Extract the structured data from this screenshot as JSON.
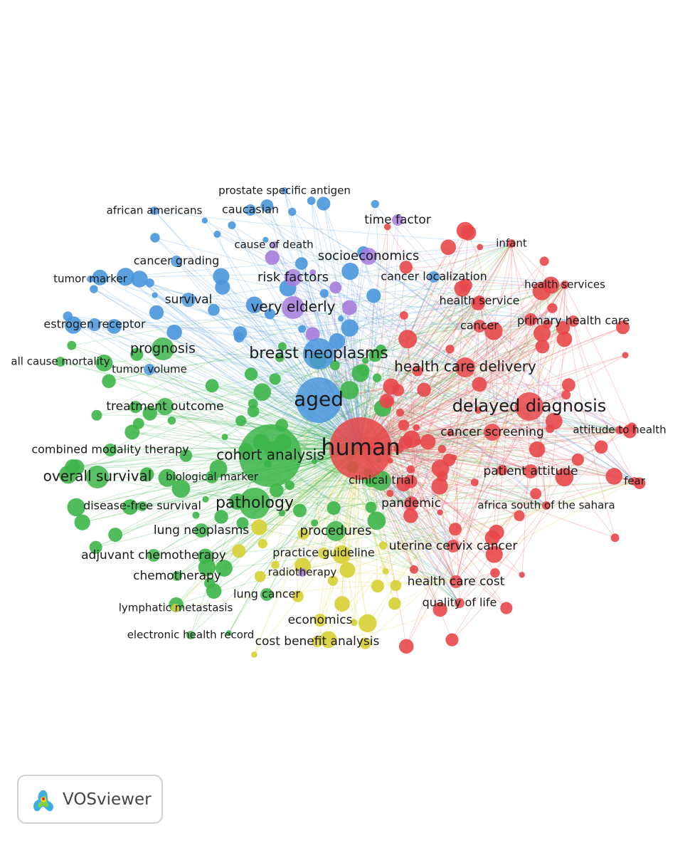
{
  "nodes": [
    {
      "label": "human"
    },
    {
      "label": "delayed diagnosis"
    },
    {
      "label": "health care delivery"
    },
    {
      "label": "cancer screening"
    },
    {
      "label": "patient attitude"
    },
    {
      "label": "pandemic"
    },
    {
      "label": "uterine cervix cancer"
    },
    {
      "label": "health care cost"
    },
    {
      "label": "quality of life"
    },
    {
      "label": "health service"
    },
    {
      "label": "cancer"
    },
    {
      "label": "primary health care"
    },
    {
      "label": "health services"
    },
    {
      "label": "infant"
    },
    {
      "label": "attitude to health"
    },
    {
      "label": "fear"
    },
    {
      "label": "africa south of the sahara"
    },
    {
      "label": "clinical trial"
    },
    {
      "label": "aged"
    },
    {
      "label": "breast neoplasms"
    },
    {
      "label": "prostate specific antigen"
    },
    {
      "label": "african americans"
    },
    {
      "label": "caucasian"
    },
    {
      "label": "cancer grading"
    },
    {
      "label": "tumor marker"
    },
    {
      "label": "survival"
    },
    {
      "label": "estrogen receptor"
    },
    {
      "label": "tumor volume"
    },
    {
      "label": "cancer localization"
    },
    {
      "label": "time factor"
    },
    {
      "label": "socioeconomics"
    },
    {
      "label": "cause of death"
    },
    {
      "label": "risk factors"
    },
    {
      "label": "very elderly"
    },
    {
      "label": "prognosis"
    },
    {
      "label": "all cause mortality"
    },
    {
      "label": "treatment outcome"
    },
    {
      "label": "cohort analysis"
    },
    {
      "label": "combined modality therapy"
    },
    {
      "label": "overall survival"
    },
    {
      "label": "biological marker"
    },
    {
      "label": "pathology"
    },
    {
      "label": "disease-free survival"
    },
    {
      "label": "lung neoplasms"
    },
    {
      "label": "adjuvant chemotherapy"
    },
    {
      "label": "chemotherapy"
    },
    {
      "label": "lymphatic metastasis"
    },
    {
      "label": "electronic health record"
    },
    {
      "label": "lung cancer"
    },
    {
      "label": "procedures"
    },
    {
      "label": "practice guideline"
    },
    {
      "label": "radiotherapy"
    },
    {
      "label": "economics"
    },
    {
      "label": "cost benefit analysis"
    }
  ],
  "logo": {
    "text": "VOSviewer"
  }
}
